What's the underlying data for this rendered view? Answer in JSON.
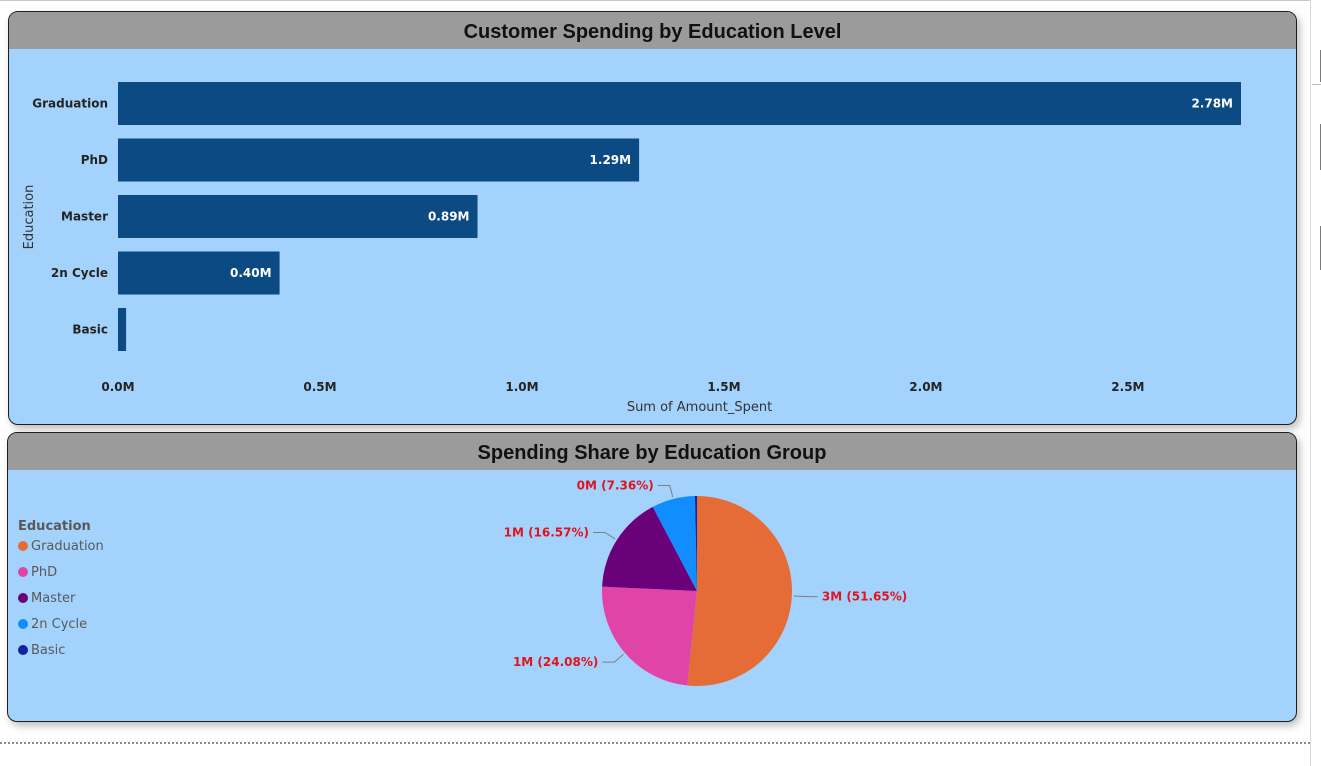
{
  "bar_card": {
    "title": "Customer Spending by Education Level"
  },
  "pie_card": {
    "title": "Spending Share by Education Group"
  },
  "chart_data": [
    {
      "type": "bar",
      "orientation": "horizontal",
      "title": "Customer Spending by Education Level",
      "xlabel": "Sum of Amount_Spent",
      "ylabel": "Education",
      "categories": [
        "Graduation",
        "PhD",
        "Master",
        "2n Cycle",
        "Basic"
      ],
      "values": [
        2.78,
        1.29,
        0.89,
        0.4,
        0.02
      ],
      "data_labels": [
        "2.78M",
        "1.29M",
        "0.89M",
        "0.40M",
        ""
      ],
      "x_ticks": [
        0,
        0.5,
        1.0,
        1.5,
        2.0,
        2.5
      ],
      "x_tick_labels": [
        "0.0M",
        "0.5M",
        "1.0M",
        "1.5M",
        "2.0M",
        "2.5M"
      ],
      "xlim": [
        0,
        2.78
      ],
      "grid": false,
      "bar_color": "#0b4a82",
      "label_color": "#ffffff"
    },
    {
      "type": "pie",
      "title": "Spending Share by Education Group",
      "legend_title": "Education",
      "legend_position": "left",
      "slices": [
        {
          "name": "Graduation",
          "percent": 51.65,
          "label": "3M (51.65%)",
          "color": "#e66c37"
        },
        {
          "name": "PhD",
          "percent": 24.08,
          "label": "1M (24.08%)",
          "color": "#e044a7"
        },
        {
          "name": "Master",
          "percent": 16.57,
          "label": "1M (16.57%)",
          "color": "#6b007b"
        },
        {
          "name": "2n Cycle",
          "percent": 7.36,
          "label": "0M (7.36%)",
          "color": "#118dff"
        },
        {
          "name": "Basic",
          "percent": 0.34,
          "label": "",
          "color": "#12239e"
        }
      ],
      "label_color": "#e0141e"
    }
  ]
}
